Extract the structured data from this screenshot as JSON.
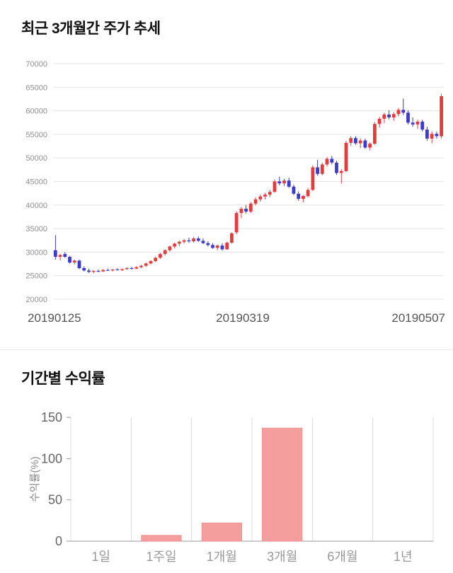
{
  "chart_data": [
    {
      "type": "candlestick",
      "title": "최근 3개월간 주가 추세",
      "x_labels": [
        "20190125",
        "20190319",
        "20190507"
      ],
      "ylim": [
        20000,
        70000
      ],
      "y_ticks": [
        20000,
        25000,
        30000,
        35000,
        40000,
        45000,
        50000,
        55000,
        60000,
        65000,
        70000
      ],
      "grid": "on-horizontal",
      "colors": {
        "up": "#e23c3c",
        "down": "#3c3cc8",
        "grid": "#e3e3e3",
        "axis_text": "#909090",
        "date_text": "#555555"
      },
      "candles": [
        [
          30400,
          33600,
          28400,
          29000
        ],
        [
          29000,
          29600,
          28200,
          29400
        ],
        [
          29600,
          30000,
          28800,
          29000
        ],
        [
          29000,
          29200,
          27600,
          27800
        ],
        [
          27800,
          28400,
          27400,
          28200
        ],
        [
          28200,
          28400,
          26400,
          26600
        ],
        [
          26600,
          27000,
          25900,
          26100
        ],
        [
          26100,
          26500,
          25600,
          25800
        ],
        [
          25800,
          26200,
          25500,
          26000
        ],
        [
          26000,
          26300,
          25700,
          25900
        ],
        [
          25900,
          26400,
          25800,
          26200
        ],
        [
          26200,
          26500,
          26000,
          26100
        ],
        [
          26100,
          26400,
          25900,
          26300
        ],
        [
          26300,
          26600,
          26100,
          26200
        ],
        [
          26200,
          26500,
          26000,
          26400
        ],
        [
          26400,
          26800,
          26200,
          26600
        ],
        [
          26600,
          26900,
          26300,
          26500
        ],
        [
          26500,
          27000,
          26400,
          26800
        ],
        [
          26800,
          27300,
          26600,
          27100
        ],
        [
          27100,
          27800,
          26900,
          27600
        ],
        [
          27600,
          28300,
          27400,
          28100
        ],
        [
          28100,
          29000,
          27900,
          28800
        ],
        [
          28800,
          29800,
          28600,
          29600
        ],
        [
          29600,
          30600,
          29300,
          30400
        ],
        [
          30400,
          31400,
          30100,
          31200
        ],
        [
          31200,
          32000,
          30800,
          31800
        ],
        [
          31800,
          32400,
          31300,
          32200
        ],
        [
          32200,
          32800,
          31800,
          32500
        ],
        [
          32500,
          33100,
          32000,
          32300
        ],
        [
          32300,
          33200,
          32000,
          32900
        ],
        [
          32900,
          33300,
          32200,
          32400
        ],
        [
          32400,
          32900,
          31700,
          31900
        ],
        [
          31900,
          32300,
          31200,
          31500
        ],
        [
          31500,
          31900,
          30700,
          30900
        ],
        [
          30900,
          31600,
          30400,
          31400
        ],
        [
          31400,
          31900,
          30300,
          30600
        ],
        [
          30600,
          32200,
          30500,
          32000
        ],
        [
          32000,
          34200,
          31800,
          34000
        ],
        [
          34200,
          38600,
          33800,
          38300
        ],
        [
          38300,
          39600,
          37200,
          39200
        ],
        [
          39200,
          40000,
          38200,
          38600
        ],
        [
          38600,
          40600,
          38300,
          40300
        ],
        [
          40300,
          41600,
          39900,
          41200
        ],
        [
          41200,
          42200,
          40700,
          41800
        ],
        [
          41800,
          42600,
          41200,
          42200
        ],
        [
          42200,
          43200,
          41700,
          42800
        ],
        [
          42800,
          45400,
          42600,
          45000
        ],
        [
          45000,
          46000,
          44200,
          44600
        ],
        [
          44600,
          45600,
          44000,
          45200
        ],
        [
          45200,
          45800,
          43600,
          43900
        ],
        [
          43900,
          44300,
          42100,
          42400
        ],
        [
          42400,
          42900,
          40900,
          41300
        ],
        [
          41300,
          42100,
          40600,
          41900
        ],
        [
          41900,
          43600,
          41600,
          43200
        ],
        [
          43200,
          48400,
          43000,
          48000
        ],
        [
          48000,
          49600,
          46200,
          46600
        ],
        [
          46600,
          49000,
          46300,
          48600
        ],
        [
          48600,
          50200,
          48200,
          49800
        ],
        [
          49800,
          50400,
          48600,
          49000
        ],
        [
          49000,
          49400,
          46400,
          46800
        ],
        [
          46800,
          47600,
          44600,
          47200
        ],
        [
          47200,
          53600,
          47000,
          53200
        ],
        [
          53200,
          54600,
          52600,
          54200
        ],
        [
          54200,
          54600,
          52800,
          53100
        ],
        [
          53100,
          54100,
          52100,
          53700
        ],
        [
          53700,
          54100,
          51900,
          52200
        ],
        [
          52200,
          53300,
          51600,
          53000
        ],
        [
          53000,
          57600,
          52800,
          57200
        ],
        [
          57200,
          58700,
          56400,
          58300
        ],
        [
          58300,
          59600,
          57400,
          59200
        ],
        [
          59200,
          60100,
          58200,
          58600
        ],
        [
          58600,
          59700,
          57900,
          59300
        ],
        [
          59300,
          60600,
          58800,
          60200
        ],
        [
          60200,
          62600,
          59100,
          59600
        ],
        [
          59600,
          60100,
          57100,
          57500
        ],
        [
          57500,
          58600,
          56600,
          57100
        ],
        [
          57100,
          58100,
          56200,
          57700
        ],
        [
          57700,
          58100,
          55600,
          56000
        ],
        [
          56000,
          56600,
          53600,
          54100
        ],
        [
          54100,
          55600,
          53100,
          55100
        ],
        [
          55100,
          55600,
          54100,
          54600
        ],
        [
          54600,
          63600,
          54100,
          63100
        ]
      ]
    },
    {
      "type": "bar",
      "title": "기간별 수익률",
      "ylabel": "수익률(%)",
      "categories": [
        "1일",
        "1주일",
        "1개월",
        "3개월",
        "6개월",
        "1년"
      ],
      "values": [
        0,
        7,
        22,
        137,
        0,
        0
      ],
      "ylim": [
        0,
        150
      ],
      "y_ticks": [
        0,
        50,
        100,
        150
      ],
      "grid": "vertical-slot-lines",
      "legend": "none",
      "colors": {
        "bar": "#f59e9e",
        "bar_border": "#ef8f8f",
        "vgrid": "#dcdcdc",
        "baseline": "#9a9a9a",
        "tick_text": "#666666",
        "cat_text": "#999999",
        "ylabel_text": "#888888"
      }
    }
  ]
}
